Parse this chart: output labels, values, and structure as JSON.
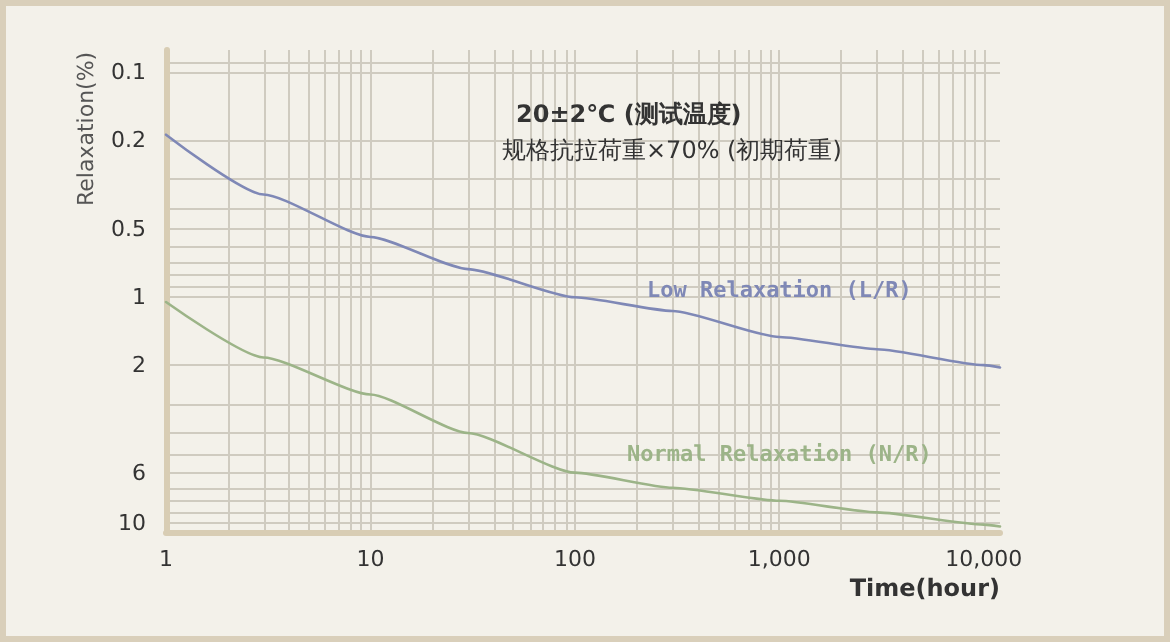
{
  "chart_data": {
    "type": "line",
    "annotations": [
      "20±2℃ (测试温度)",
      "规格抗拉荷重×70% (初期荷重)"
    ],
    "xlabel": "Time(hour)",
    "ylabel": "Relaxation(%)",
    "log": "xy",
    "grid": true,
    "legend": false,
    "marker": "none",
    "line_style": "solid",
    "xlim": [
      1,
      12000
    ],
    "xticks": [
      1,
      10,
      100,
      {
        "value": 1000,
        "label": "1,000"
      },
      {
        "value": 10000,
        "label": "10,000"
      }
    ],
    "ylim": [
      11,
      0.08
    ],
    "yticks": [
      0.1,
      0.2,
      0.5,
      1,
      2,
      6,
      10
    ],
    "x": [
      1,
      3,
      10,
      30,
      100,
      300,
      1000,
      3000,
      10000,
      12000
    ],
    "series": [
      {
        "name": "Low Relaxation (L/R)",
        "color": "#7f88b6",
        "values": [
          0.19,
          0.35,
          0.54,
          0.75,
          1.0,
          1.15,
          1.5,
          1.7,
          2.0,
          2.05
        ]
      },
      {
        "name": "Normal Relaxation (N/R)",
        "color": "#9cb488",
        "values": [
          1.05,
          1.85,
          2.7,
          4.0,
          6.0,
          7.0,
          8.0,
          9.0,
          10.2,
          10.4
        ]
      }
    ]
  }
}
